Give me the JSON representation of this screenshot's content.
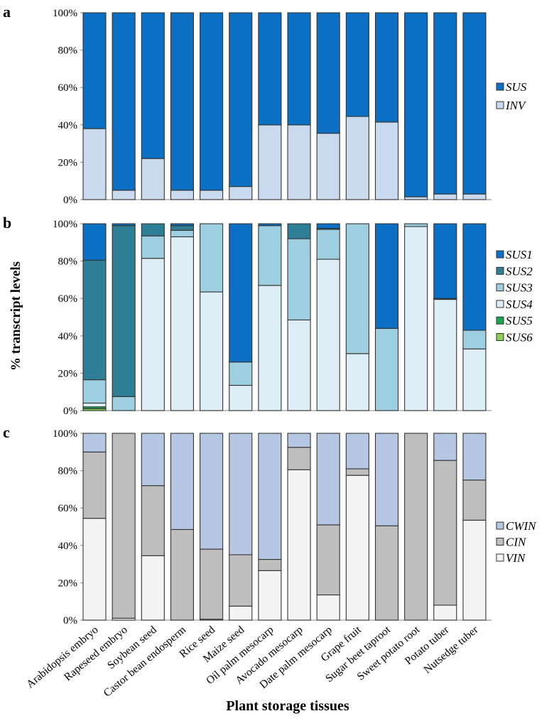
{
  "chart_data": [
    {
      "panel": "a",
      "type": "bar",
      "stacked": true,
      "normalized": true,
      "ylim": [
        0,
        100
      ],
      "yticks": [
        "0%",
        "20%",
        "40%",
        "60%",
        "80%",
        "100%"
      ],
      "legend_position": "right",
      "series": [
        {
          "name": "INV",
          "color": "#c9daef",
          "values": [
            38,
            5,
            22,
            5,
            5,
            7,
            40,
            40,
            35.5,
            44.5,
            41.5,
            1.5,
            3,
            3
          ]
        },
        {
          "name": "SUS",
          "color": "#0b6fc4",
          "values": [
            62,
            95,
            78,
            95,
            95,
            93,
            60,
            60,
            64.5,
            55.5,
            58.5,
            98.5,
            97,
            97
          ]
        }
      ],
      "legend_order": [
        "SUS",
        "INV"
      ]
    },
    {
      "panel": "b",
      "type": "bar",
      "stacked": true,
      "normalized": true,
      "ylim": [
        0,
        100
      ],
      "yticks": [
        "0%",
        "20%",
        "40%",
        "60%",
        "80%",
        "100%"
      ],
      "legend_position": "right",
      "series": [
        {
          "name": "SUS6",
          "color": "#8fcd5b",
          "values": [
            1,
            0,
            0,
            0,
            0,
            0,
            0,
            0,
            0,
            0,
            0,
            0,
            0,
            0
          ]
        },
        {
          "name": "SUS5",
          "color": "#17a84f",
          "values": [
            1,
            0,
            0,
            0,
            0,
            0,
            0,
            0,
            0,
            0,
            0,
            0,
            0,
            0
          ]
        },
        {
          "name": "SUS4",
          "color": "#deeef7",
          "values": [
            2,
            0,
            81.5,
            93,
            63.5,
            13.5,
            67,
            48.5,
            81,
            30.5,
            0,
            98.5,
            59.5,
            33
          ]
        },
        {
          "name": "SUS3",
          "color": "#9dcfe1",
          "values": [
            12.5,
            7.5,
            12,
            3.5,
            36.5,
            12.5,
            32,
            43.5,
            16,
            69.5,
            44,
            1.5,
            0,
            10
          ]
        },
        {
          "name": "SUS2",
          "color": "#2e7f96",
          "values": [
            64,
            91.5,
            6.5,
            2.5,
            0,
            0,
            0,
            8,
            0.5,
            0,
            0,
            0,
            0.5,
            0
          ]
        },
        {
          "name": "SUS1",
          "color": "#0b6fc4",
          "values": [
            19.5,
            1,
            0,
            1,
            0,
            74,
            1,
            0,
            2.5,
            0,
            56,
            0,
            40,
            57
          ]
        }
      ],
      "legend_order": [
        "SUS1",
        "SUS2",
        "SUS3",
        "SUS4",
        "SUS5",
        "SUS6"
      ]
    },
    {
      "panel": "c",
      "type": "bar",
      "stacked": true,
      "normalized": true,
      "ylim": [
        0,
        100
      ],
      "yticks": [
        "0%",
        "20%",
        "40%",
        "60%",
        "80%",
        "100%"
      ],
      "legend_position": "right",
      "series": [
        {
          "name": "VIN",
          "color": "#f4f4f4",
          "values": [
            54.5,
            1,
            34.5,
            0,
            0.5,
            7.5,
            26.5,
            80.5,
            13.5,
            77.5,
            0,
            0,
            8,
            53.5
          ]
        },
        {
          "name": "CIN",
          "color": "#bebebe",
          "values": [
            35.5,
            99,
            37.5,
            48.5,
            37.5,
            27.5,
            6,
            12,
            37.5,
            3.5,
            50.5,
            100,
            77.5,
            21.5
          ]
        },
        {
          "name": "CWIN",
          "color": "#b5c7e3",
          "values": [
            10,
            0,
            28,
            51.5,
            62,
            65,
            67.5,
            7.5,
            49,
            19,
            49.5,
            0,
            14.5,
            25
          ]
        }
      ],
      "legend_order": [
        "CWIN",
        "CIN",
        "VIN"
      ]
    }
  ],
  "categories": [
    "Arabidopsis embryo",
    "Rapeseed embryo",
    "Soybean seed",
    "Castor bean endosperm",
    "Rice seed",
    "Maize seed",
    "Oil palm mesocarp",
    "Avocado mesocarp",
    "Date palm mesocarp",
    "Grape fruit",
    "Sugar beet taproot",
    "Sweet potato root",
    "Potato tuber",
    "Nutsedge tuber"
  ],
  "ylabel": "% transcript levels",
  "xlabel": "Plant storage tissues"
}
